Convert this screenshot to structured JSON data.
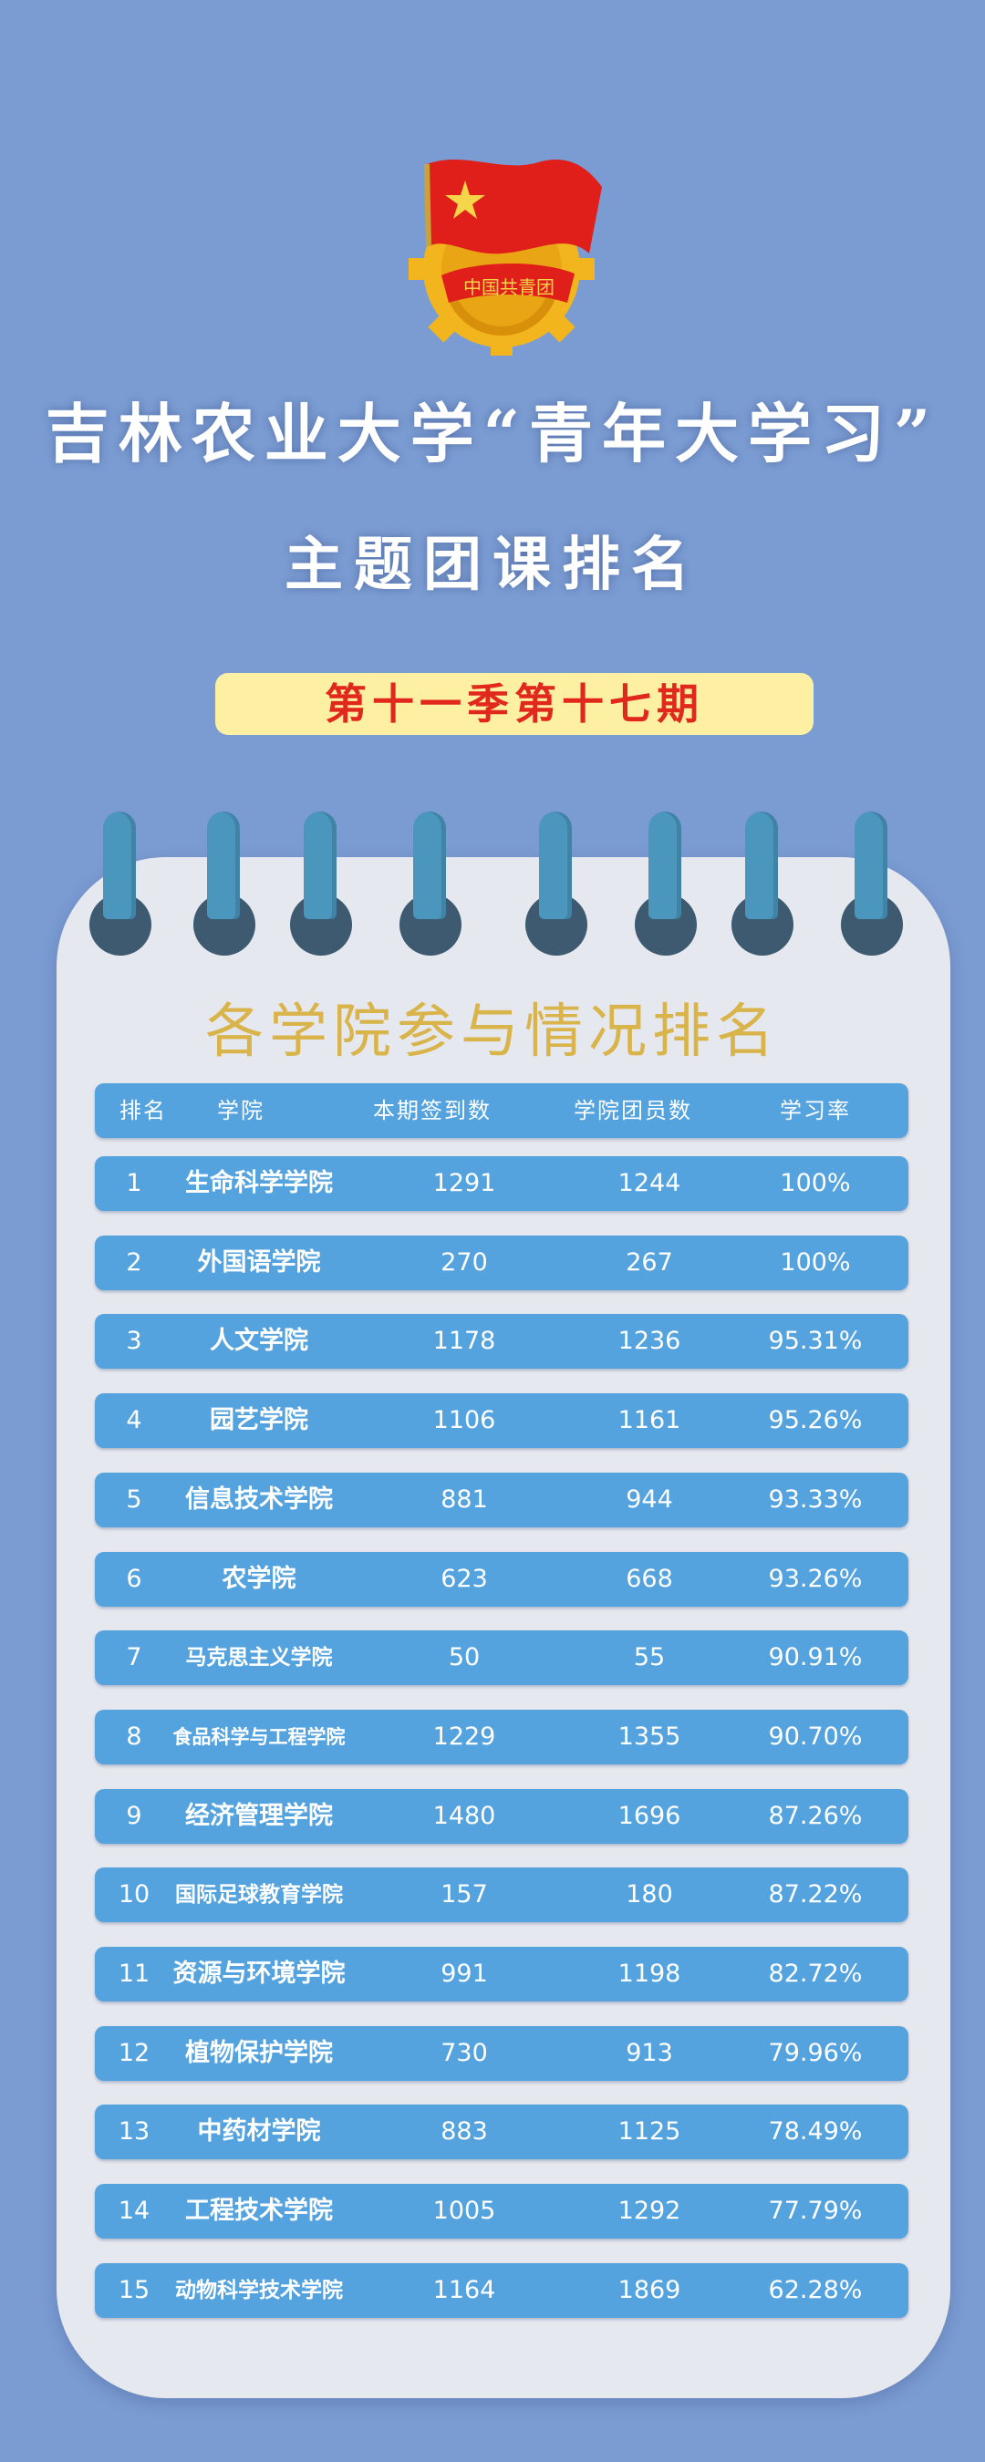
{
  "emblem": {
    "text": "中国共青团"
  },
  "title_line1": "吉林农业大学“青年大学习”",
  "title_line2": "主题团课排名",
  "season_label": "第十一季第十七期",
  "section_title": "各学院参与情况排名",
  "colors": {
    "background": "#7b9cd3",
    "row": "#55a3de",
    "notepad": "#e6e8ef",
    "season_bg": "#fdf0a2",
    "season_text": "#e0281d",
    "section_title": "#d9b44a"
  },
  "table": {
    "headers": {
      "rank": "排名",
      "college": "学院",
      "checkin": "本期签到数",
      "members": "学院团员数",
      "rate": "学习率"
    },
    "rows": [
      {
        "rank": "1",
        "college": "生命科学学院",
        "checkin": "1291",
        "members": "1244",
        "rate": "100%"
      },
      {
        "rank": "2",
        "college": "外国语学院",
        "checkin": "270",
        "members": "267",
        "rate": "100%"
      },
      {
        "rank": "3",
        "college": "人文学院",
        "checkin": "1178",
        "members": "1236",
        "rate": "95.31%"
      },
      {
        "rank": "4",
        "college": "园艺学院",
        "checkin": "1106",
        "members": "1161",
        "rate": "95.26%"
      },
      {
        "rank": "5",
        "college": "信息技术学院",
        "checkin": "881",
        "members": "944",
        "rate": "93.33%"
      },
      {
        "rank": "6",
        "college": "农学院",
        "checkin": "623",
        "members": "668",
        "rate": "93.26%"
      },
      {
        "rank": "7",
        "college": "马克思主义学院",
        "checkin": "50",
        "members": "55",
        "rate": "90.91%"
      },
      {
        "rank": "8",
        "college": "食品科学与工程学院",
        "checkin": "1229",
        "members": "1355",
        "rate": "90.70%"
      },
      {
        "rank": "9",
        "college": "经济管理学院",
        "checkin": "1480",
        "members": "1696",
        "rate": "87.26%"
      },
      {
        "rank": "10",
        "college": "国际足球教育学院",
        "checkin": "157",
        "members": "180",
        "rate": "87.22%"
      },
      {
        "rank": "11",
        "college": "资源与环境学院",
        "checkin": "991",
        "members": "1198",
        "rate": "82.72%"
      },
      {
        "rank": "12",
        "college": "植物保护学院",
        "checkin": "730",
        "members": "913",
        "rate": "79.96%"
      },
      {
        "rank": "13",
        "college": "中药材学院",
        "checkin": "883",
        "members": "1125",
        "rate": "78.49%"
      },
      {
        "rank": "14",
        "college": "工程技术学院",
        "checkin": "1005",
        "members": "1292",
        "rate": "77.79%"
      },
      {
        "rank": "15",
        "college": "动物科学技术学院",
        "checkin": "1164",
        "members": "1869",
        "rate": "62.28%"
      }
    ]
  }
}
